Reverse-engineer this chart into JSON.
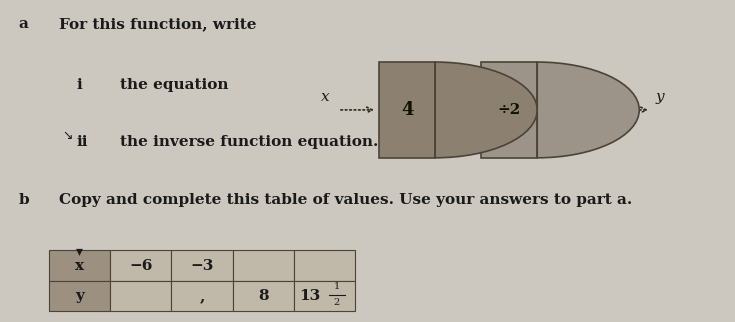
{
  "bg_color": "#cdc8bf",
  "text_color": "#1a1a1a",
  "title_a": "For this function, write",
  "item_i": "the equation",
  "item_ii": "the inverse function equation.",
  "item_b": "Copy and complete this table of values. Use your answers to part a.",
  "label_a": "a",
  "label_b": "b",
  "label_i": "i",
  "label_ii": "ii",
  "box1_label": "4",
  "box2_label": "÷2",
  "arrow_x_label": "x",
  "arrow_y_label": "y",
  "table_row1": [
    "x",
    "−6",
    "−3",
    "",
    ""
  ],
  "table_row2": [
    "y",
    "",
    ",",
    "8",
    "13"
  ],
  "box_color1": "#8c8070",
  "box_color2": "#9c9488",
  "cell_color_dark": "#9c9080",
  "cell_color_light": "#c0b8a8"
}
